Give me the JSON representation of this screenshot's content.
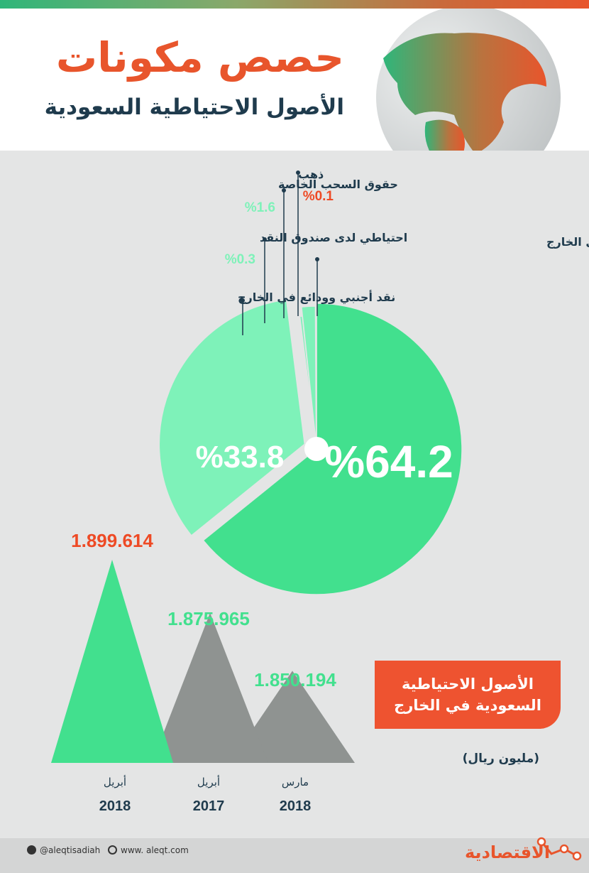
{
  "header": {
    "title": "حصص مكونات",
    "subtitle": "الأصول الاحتياطية السعودية"
  },
  "chart_data": [
    {
      "type": "pie",
      "slices": [
        {
          "label": "استثمارات في أوراق مالية في الخارج",
          "value": 64.2,
          "value_label": "%64.2",
          "color": "#42e08e"
        },
        {
          "label": "نقد أجنبي وودائع في الخارج",
          "value": 33.8,
          "value_label": "%33.8",
          "color": "#7ef2b9"
        },
        {
          "label": "احتياطي لدى صندوق النقد",
          "value": 0.3,
          "value_label": "%0.3",
          "color": "#7ef2b9"
        },
        {
          "label": "حقوق السحب الخاصة",
          "value": 1.6,
          "value_label": "%1.6",
          "color": "#7ef2b9"
        },
        {
          "label": "ذهب",
          "value": 0.1,
          "value_label": "%0.1",
          "color": "#ee4a25"
        }
      ]
    },
    {
      "type": "area",
      "title": "الأصول الاحتياطية السعودية في الخارج",
      "unit": "(مليون ريال)",
      "categories": [
        {
          "month": "أبريل",
          "year": "2018"
        },
        {
          "month": "أبريل",
          "year": "2017"
        },
        {
          "month": "مارس",
          "year": "2018"
        }
      ],
      "values": [
        1899614,
        1875965,
        1850194
      ],
      "value_labels": [
        "1.899.614",
        "1.875.965",
        "1.850.194"
      ],
      "colors": [
        "#42e08e",
        "#8f9391",
        "#8f9391"
      ],
      "label_colors": [
        "#ee4a25",
        "#42e08e",
        "#42e08e"
      ]
    }
  ],
  "footer": {
    "social": "@aleqtisadiah",
    "website": "www. aleqt.com",
    "brand": "الاقتصادية"
  }
}
